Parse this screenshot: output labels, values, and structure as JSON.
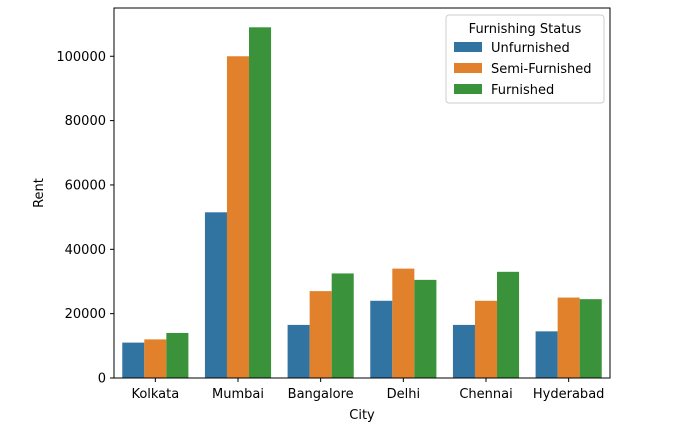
{
  "chart_data": {
    "type": "bar",
    "title": "",
    "xlabel": "City",
    "ylabel": "Rent",
    "categories": [
      "Kolkata",
      "Mumbai",
      "Bangalore",
      "Delhi",
      "Chennai",
      "Hyderabad"
    ],
    "ylim": [
      0,
      115000
    ],
    "yticks": [
      0,
      20000,
      40000,
      60000,
      80000,
      100000
    ],
    "ytick_labels": [
      "0",
      "20000",
      "40000",
      "60000",
      "80000",
      "100000"
    ],
    "legend": {
      "title": "Furnishing Status",
      "placement": "top-right"
    },
    "series": [
      {
        "name": "Unfurnished",
        "color": "#3274a1",
        "values": [
          11000,
          51500,
          16500,
          24000,
          16500,
          14500
        ]
      },
      {
        "name": "Semi-Furnished",
        "color": "#e1812c",
        "values": [
          12000,
          100000,
          27000,
          34000,
          24000,
          25000
        ]
      },
      {
        "name": "Furnished",
        "color": "#3a923a",
        "values": [
          14000,
          109000,
          32500,
          30500,
          33000,
          24500
        ]
      }
    ],
    "grid": false
  }
}
